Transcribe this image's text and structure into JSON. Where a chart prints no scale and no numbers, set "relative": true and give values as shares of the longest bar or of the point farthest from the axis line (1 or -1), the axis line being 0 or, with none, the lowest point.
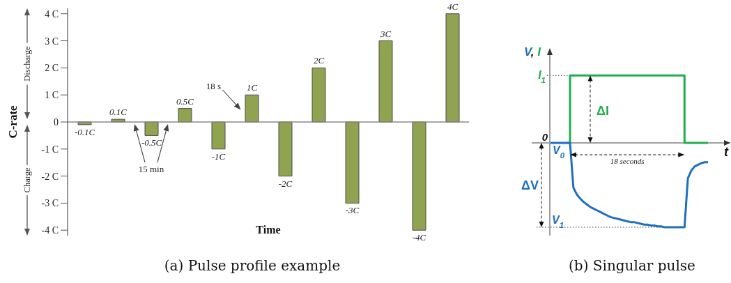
{
  "chart_data": [
    {
      "type": "bar",
      "title": "(a) Pulse profile example",
      "xlabel": "Time",
      "ylabel": "C-rate",
      "categories": [
        null,
        null,
        null,
        null,
        null,
        null,
        null,
        null,
        null,
        null,
        null,
        null
      ],
      "values": [
        -0.1,
        0.1,
        -0.5,
        0.5,
        -1,
        1,
        -2,
        2,
        -3,
        3,
        -4,
        4
      ],
      "value_labels": [
        "-0.1C",
        "0.1C",
        "-0.5C",
        "0.5C",
        "-1C",
        "1C",
        "-2C",
        "2C",
        "-3C",
        "3C",
        "-4C",
        "4C"
      ],
      "color": "#8fa351",
      "ylim": [
        -4.2,
        4.2
      ],
      "yticks": [
        {
          "value": -4,
          "label": "-4 C"
        },
        {
          "value": -3,
          "label": "-3 C"
        },
        {
          "value": -2,
          "label": "-2 C"
        },
        {
          "value": -1,
          "label": "-1 C"
        },
        0,
        {
          "value": 1,
          "label": "1 C"
        },
        {
          "value": 2,
          "label": "2 C"
        },
        {
          "value": 3,
          "label": "3 C"
        },
        {
          "value": 4,
          "label": "4 C"
        }
      ],
      "annotations": [
        "Discharge",
        "Charge",
        "15 min",
        "18 s"
      ]
    },
    {
      "type": "line",
      "title": "(b) Singular pulse",
      "xlabel": "t",
      "ylabel": "V, I",
      "relative": true,
      "marker": "none",
      "categories": [
        null,
        null,
        null,
        null,
        null,
        null,
        null,
        null,
        null,
        null,
        null,
        null,
        null,
        null,
        null,
        null,
        null,
        null,
        null,
        null,
        null,
        null,
        null,
        null,
        null,
        null,
        null,
        null,
        null,
        null,
        null,
        null,
        null,
        null,
        null,
        null,
        null,
        null,
        null,
        null,
        null,
        null,
        null,
        null,
        null,
        null,
        null,
        null
      ],
      "series": [
        {
          "color": "#1f6fc0",
          "values": [
            0,
            0,
            0,
            0,
            0,
            0,
            0,
            -0.53,
            -0.61,
            -0.66,
            -0.7,
            -0.73,
            -0.76,
            -0.78,
            -0.8,
            -0.82,
            -0.84,
            -0.86,
            -0.88,
            -0.89,
            -0.9,
            -0.91,
            -0.92,
            -0.93,
            -0.94,
            -0.94,
            -0.95,
            -0.96,
            -0.97,
            -0.97,
            -0.98,
            -0.98,
            -0.99,
            -0.99,
            -1,
            -1,
            -1,
            -1,
            -1,
            -1,
            -1,
            -0.42,
            -0.33,
            -0.28,
            -0.26,
            -0.24,
            -0.23,
            -0.23
          ]
        },
        {
          "type": "step",
          "color": "#1fae4c",
          "values": [
            null,
            null,
            null,
            null,
            null,
            0,
            0.8,
            0.8,
            0.8,
            0.8,
            0.8,
            0.8,
            0.8,
            0.8,
            0.8,
            0.8,
            0.8,
            0.8,
            0.8,
            0.8,
            0.8,
            0.8,
            0.8,
            0.8,
            0.8,
            0.8,
            0.8,
            0.8,
            0.8,
            0.8,
            0.8,
            0.8,
            0.8,
            0.8,
            0.8,
            0.8,
            0.8,
            0.8,
            0.8,
            0.8,
            0,
            0,
            0,
            0,
            0,
            0,
            0,
            0
          ]
        }
      ],
      "ref_lines": [
        {
          "axis": "y",
          "value": 0.8,
          "label": "I$_{1}$",
          "line_style": "dotted"
        },
        {
          "axis": "y",
          "value": -1,
          "label": "V$_{1}$",
          "line_style": "dotted"
        }
      ],
      "annotations": [
        "0",
        "V$_{0}$",
        "ΔI",
        "ΔV",
        "18 seconds"
      ]
    }
  ]
}
